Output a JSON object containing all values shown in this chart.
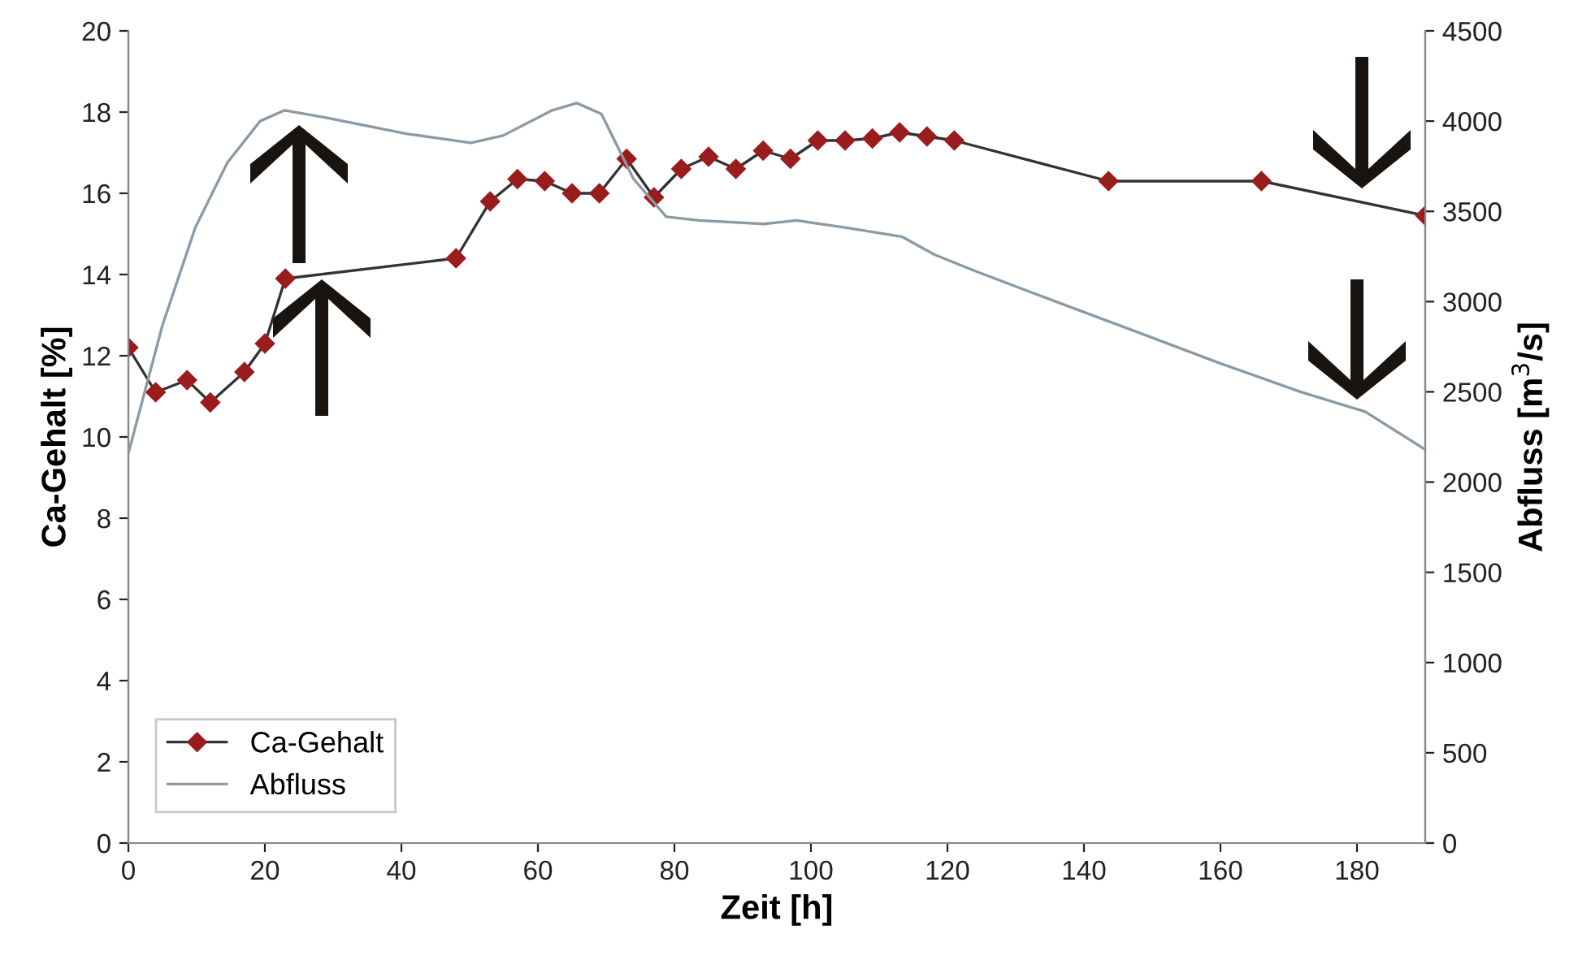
{
  "chart_data": {
    "type": "line",
    "xlabel": "Zeit [h]",
    "ylabel": "Ca-Gehalt [%]",
    "y2label": "Abfluss [m$^{3}$/s]",
    "xlim": [
      0,
      190
    ],
    "xticks": [
      0,
      20,
      40,
      60,
      80,
      100,
      120,
      140,
      160,
      180
    ],
    "ylim": [
      0,
      20
    ],
    "yticks": [
      0,
      2,
      4,
      6,
      8,
      10,
      12,
      14,
      16,
      18,
      20
    ],
    "y2lim": [
      0,
      4500
    ],
    "y2ticks": [
      0,
      500,
      1000,
      1500,
      2000,
      2500,
      3000,
      3500,
      4000,
      4500
    ],
    "grid": false,
    "legend": "bottom left",
    "series": [
      {
        "name": "Ca-Gehalt",
        "color": "#9b1c1c",
        "marker": "diamond",
        "x": [
          0,
          4,
          8.6,
          12,
          17,
          20,
          23,
          48,
          53,
          57,
          61,
          65,
          69,
          73,
          77,
          81,
          85,
          89,
          93,
          97,
          101,
          105,
          109,
          113,
          117,
          121,
          143.6,
          166,
          190
        ],
        "values": [
          12.2,
          11.1,
          11.4,
          10.85,
          11.6,
          12.3,
          13.9,
          14.4,
          15.8,
          16.35,
          16.3,
          16.0,
          16.0,
          16.85,
          15.9,
          16.6,
          16.9,
          16.6,
          17.05,
          16.85,
          17.3,
          17.3,
          17.35,
          17.5,
          17.4,
          17.3,
          16.3,
          16.3,
          15.45
        ]
      },
      {
        "name": "Abfluss",
        "color": "#8a9aa6",
        "marker": "none",
        "axis": "y2",
        "x": [
          0,
          5,
          9.8,
          14.5,
          19.3,
          22.9,
          28.8,
          40.7,
          50.2,
          54.9,
          62.1,
          65.7,
          69.3,
          74,
          78.8,
          83.6,
          93.1,
          97.9,
          105,
          113.3,
          118.1,
          124,
          135.9,
          147.9,
          159.8,
          171.7,
          181.2,
          190
        ],
        "values": [
          2160,
          2870,
          3410,
          3770,
          4000,
          4060,
          4020,
          3930,
          3880,
          3920,
          4060,
          4100,
          4040,
          3680,
          3470,
          3450,
          3430,
          3450,
          3410,
          3360,
          3260,
          3170,
          3000,
          2830,
          2660,
          2500,
          2390,
          2180
        ]
      }
    ]
  }
}
